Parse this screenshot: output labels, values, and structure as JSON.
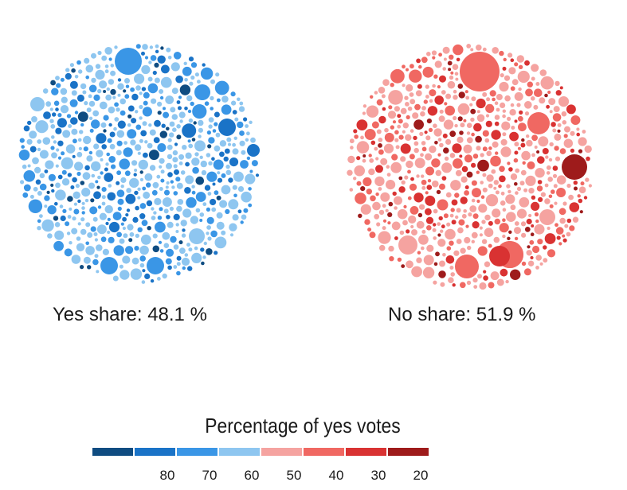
{
  "chart_data": {
    "type": "bubble-pack",
    "panels": [
      {
        "name": "yes",
        "label": "Yes share: 48.1 %",
        "share_pct": 48.1
      },
      {
        "name": "no",
        "label": "No share: 51.9 %",
        "share_pct": 51.9
      }
    ],
    "legend": {
      "title": "Percentage of yes votes",
      "colors": [
        "#0f4c81",
        "#1a73c7",
        "#3a96e6",
        "#8ec6f0",
        "#f5a3a0",
        "#f06862",
        "#d93232",
        "#9e1b1b"
      ],
      "tick_labels": [
        "80",
        "70",
        "60",
        "50",
        "40",
        "30",
        "20"
      ]
    }
  }
}
